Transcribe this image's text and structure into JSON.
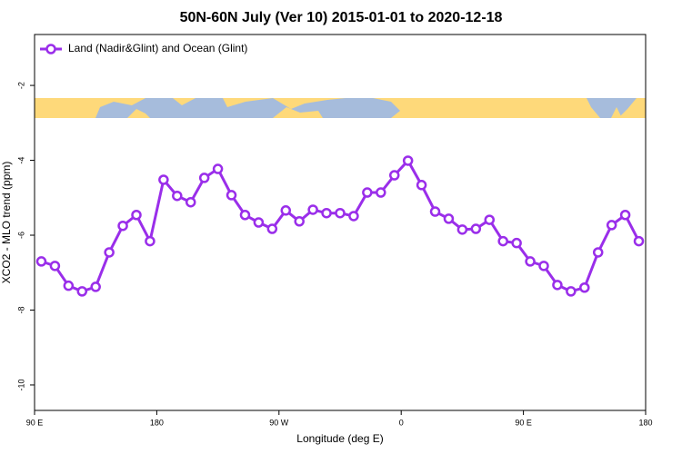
{
  "chart_data": {
    "type": "line",
    "title": "50N-60N July (Ver 10)   2015-01-01 to 2020-12-18",
    "xlabel": "Longitude (deg E)",
    "ylabel": "XCO2 - MLO trend (ppm)",
    "x": [
      95,
      105,
      115,
      125,
      135,
      145,
      155,
      165,
      175,
      185,
      195,
      205,
      215,
      225,
      235,
      245,
      255,
      265,
      275,
      285,
      295,
      305,
      315,
      325,
      335,
      345,
      355,
      365,
      375,
      385,
      395,
      405,
      415,
      425,
      435,
      445,
      455,
      465,
      475,
      485,
      495,
      505,
      515,
      525,
      535
    ],
    "series": [
      {
        "name": "Land (Nadir&Glint) and Ocean (Glint)",
        "color": "#9a2eea",
        "values": [
          -6.7,
          -6.82,
          -7.35,
          -7.5,
          -7.38,
          -6.46,
          -5.75,
          -5.46,
          -6.16,
          -4.52,
          -4.95,
          -5.12,
          -4.47,
          -4.23,
          -4.93,
          -5.46,
          -5.66,
          -5.83,
          -5.34,
          -5.63,
          -5.32,
          -5.41,
          -5.41,
          -5.49,
          -4.86,
          -4.86,
          -4.4,
          -4.01,
          -4.66,
          -5.37,
          -5.56,
          -5.85,
          -5.83,
          -5.59,
          -6.16,
          -6.21,
          -6.7,
          -6.82,
          -7.33,
          -7.5,
          -7.4,
          -6.46,
          -5.73,
          -5.46,
          -6.16
        ]
      }
    ],
    "xlim": [
      90,
      540
    ],
    "xticks": [
      {
        "value": 90,
        "label": "90 E"
      },
      {
        "value": 180,
        "label": "180"
      },
      {
        "value": 270,
        "label": "90 W"
      },
      {
        "value": 360,
        "label": "0"
      },
      {
        "value": 450,
        "label": "90 E"
      },
      {
        "value": 540,
        "label": "180"
      }
    ],
    "ylim": [
      -10.68,
      -0.64
    ],
    "yticks": [
      -10,
      -8,
      -6,
      -4,
      -2
    ],
    "legend": "top-left"
  }
}
